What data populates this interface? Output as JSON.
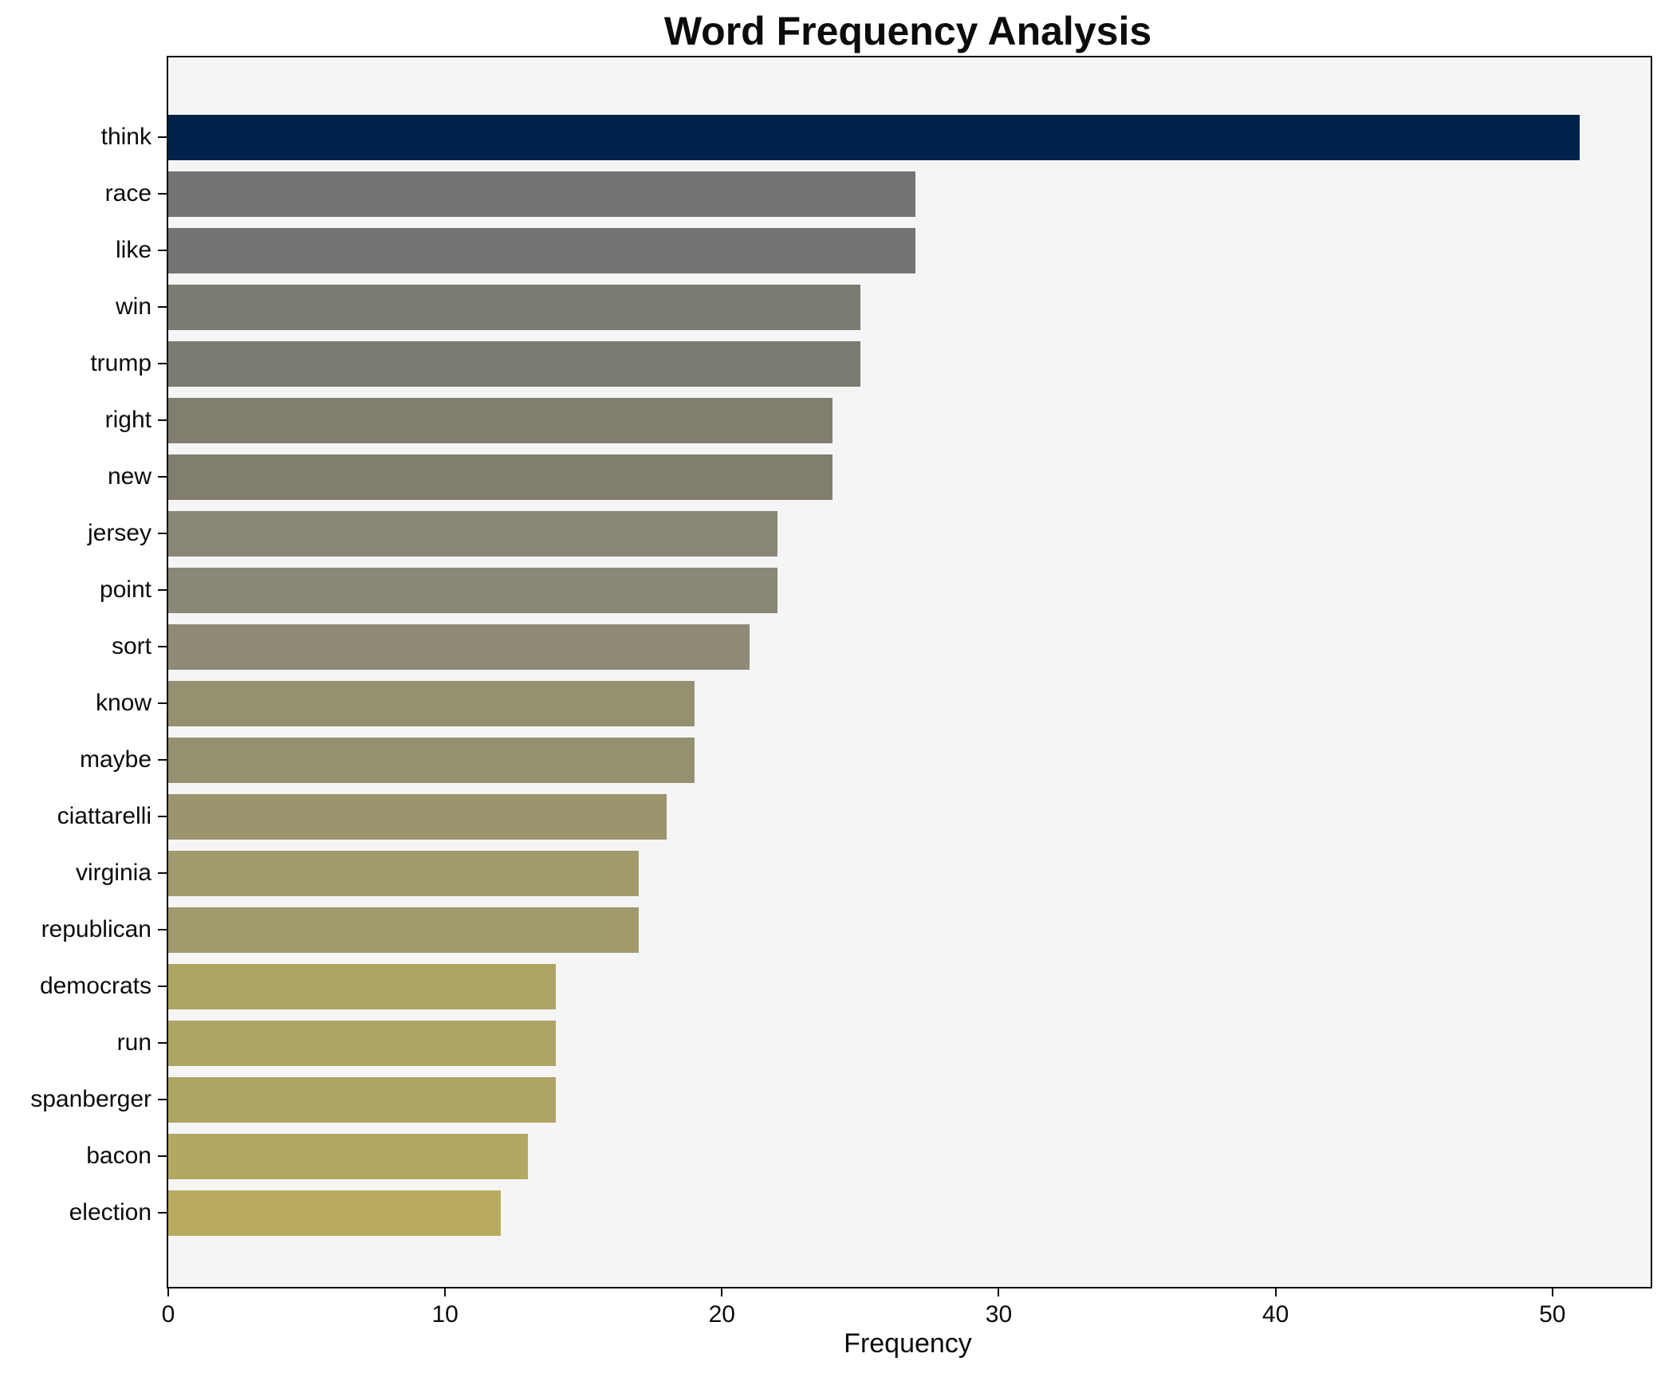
{
  "chart_data": {
    "type": "bar",
    "orientation": "horizontal",
    "title": "Word Frequency Analysis",
    "xlabel": "Frequency",
    "ylabel": "",
    "categories": [
      "think",
      "race",
      "like",
      "win",
      "trump",
      "right",
      "new",
      "jersey",
      "point",
      "sort",
      "know",
      "maybe",
      "ciattarelli",
      "virginia",
      "republican",
      "democrats",
      "run",
      "spanberger",
      "bacon",
      "election"
    ],
    "values": [
      51,
      27,
      27,
      25,
      25,
      24,
      24,
      22,
      22,
      21,
      19,
      19,
      18,
      17,
      17,
      14,
      14,
      14,
      13,
      12
    ],
    "bar_colors": [
      "#01234b",
      "#747474",
      "#747474",
      "#7b7a73",
      "#7b7a73",
      "#817e70",
      "#817e70",
      "#8b8777",
      "#8b8777",
      "#8e8a76",
      "#949070",
      "#949070",
      "#9b956f",
      "#a09a6c",
      "#a09a6c",
      "#aea464",
      "#aea464",
      "#aea464",
      "#b3a862",
      "#b8ab60"
    ],
    "xlim": [
      0,
      53.55
    ],
    "xticks": [
      0,
      10,
      20,
      30,
      40,
      50
    ],
    "grid": false,
    "legend": null,
    "plot_bg": "#f5f5f6",
    "figure_bg": "#ffffff",
    "bar_color_note": "cividis-like gradient: highest value navy, descending through gray to khaki"
  }
}
